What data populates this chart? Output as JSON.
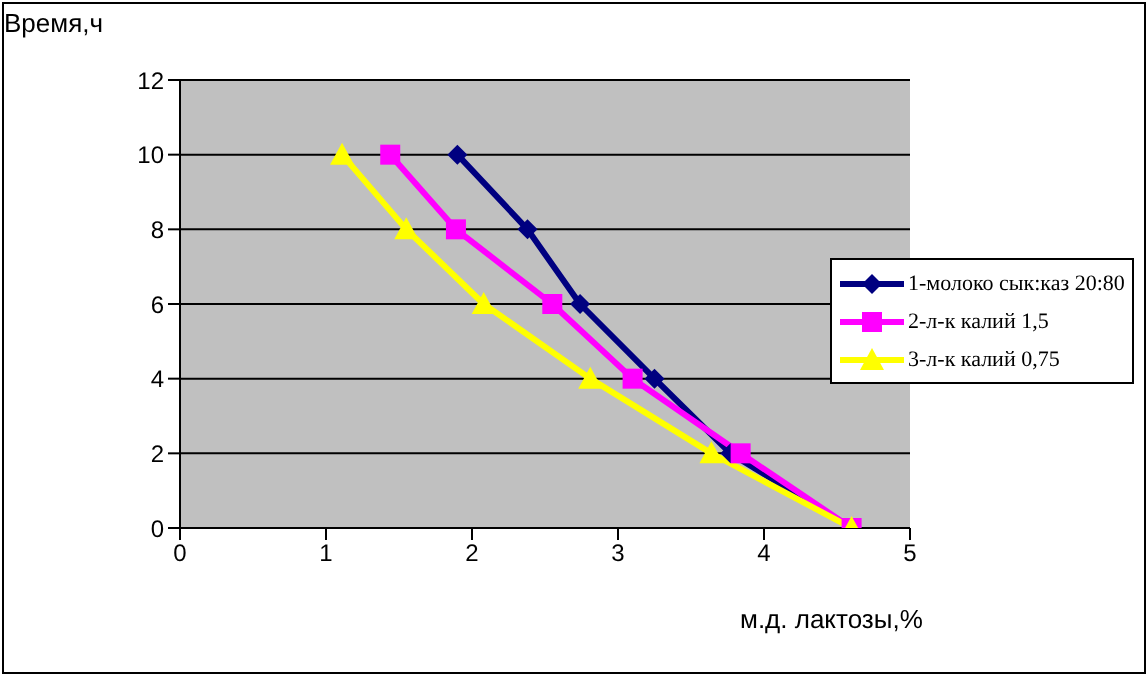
{
  "chart_data": {
    "type": "line",
    "ylabel": "Время,ч",
    "xlabel": "м.д. лактозы,%",
    "xlim": [
      0,
      5
    ],
    "xticks": [
      0,
      1,
      2,
      3,
      4,
      5
    ],
    "ylim": [
      0,
      12
    ],
    "yticks": [
      0,
      2,
      4,
      6,
      8,
      10,
      12
    ],
    "grid": "y",
    "legend": "right",
    "series": [
      {
        "name": "1-молоко сык:каз 20:80",
        "color": "#000080",
        "marker": "diamond",
        "x": [
          1.9,
          2.38,
          2.74,
          3.25,
          3.77,
          4.6
        ],
        "values": [
          10,
          8,
          6,
          4,
          2,
          0
        ]
      },
      {
        "name": "2-л-к калий 1,5",
        "color": "#ff00ff",
        "marker": "square",
        "x": [
          1.44,
          1.89,
          2.55,
          3.1,
          3.84,
          4.6
        ],
        "values": [
          10,
          8,
          6,
          4,
          2,
          0
        ]
      },
      {
        "name": "3-л-к калий 0,75",
        "color": "#ffff00",
        "marker": "triangle",
        "x": [
          1.11,
          1.55,
          2.08,
          2.81,
          3.64,
          4.6
        ],
        "values": [
          10,
          8,
          6,
          4,
          2,
          0
        ]
      }
    ]
  }
}
